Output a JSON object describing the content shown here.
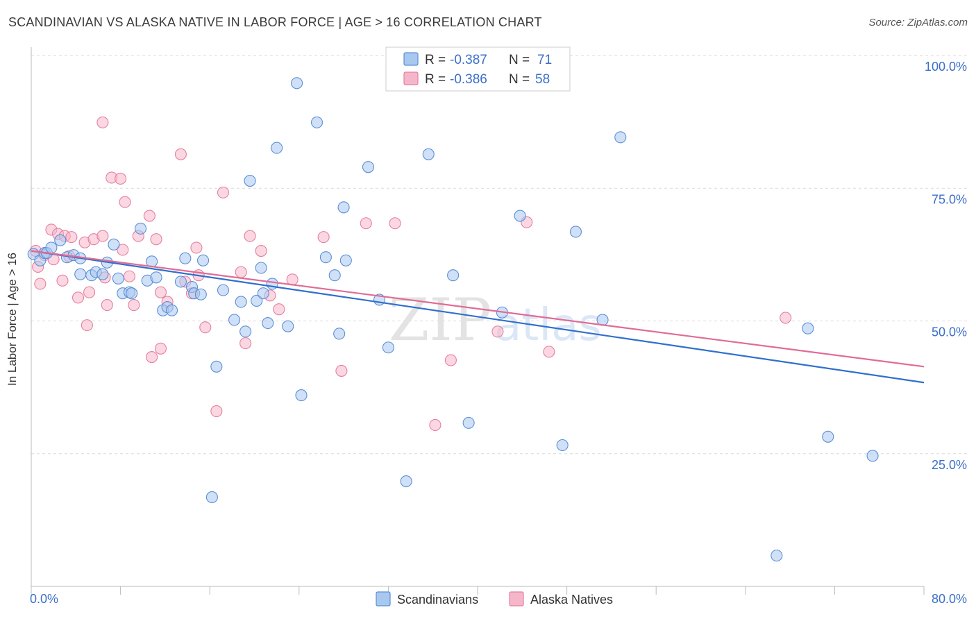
{
  "header": {
    "title": "SCANDINAVIAN VS ALASKA NATIVE IN LABOR FORCE | AGE > 16 CORRELATION CHART",
    "source": "Source: ZipAtlas.com"
  },
  "watermark": {
    "zip": "ZIP",
    "atlas": "atlas"
  },
  "legend_box": {
    "rows": [
      {
        "r_label": "R =",
        "r_value": "-0.387",
        "n_label": "N =",
        "n_value": "71"
      },
      {
        "r_label": "R =",
        "r_value": "-0.386",
        "n_label": "N =",
        "n_value": "58"
      }
    ]
  },
  "bottom_legend": [
    "Scandinavians",
    "Alaska Natives"
  ],
  "colors": {
    "blue_fill": "#a9c8f0",
    "blue_stroke": "#5b8fd6",
    "blue_line": "#2f6fce",
    "pink_fill": "#f5b6c9",
    "pink_stroke": "#e57fa2",
    "pink_line": "#e06c95",
    "value_text": "#3b6fc9",
    "grid": "#d9d9d9"
  },
  "chart_data": {
    "type": "scatter",
    "title": "SCANDINAVIAN VS ALASKA NATIVE IN LABOR FORCE | AGE > 16 CORRELATION CHART",
    "xlabel": "",
    "ylabel": "In Labor Force | Age > 16",
    "xlim": [
      0,
      80
    ],
    "ylim": [
      0,
      100
    ],
    "x_tick_labels": [
      "0.0%",
      "80.0%"
    ],
    "y_tick_labels": [
      "100.0%",
      "75.0%",
      "50.0%",
      "25.0%"
    ],
    "y_ticks": [
      100,
      75,
      50,
      25
    ],
    "grid": true,
    "legend_placement": "bottom-center",
    "series": [
      {
        "name": "Scandinavians",
        "color": "#a9c8f0",
        "r": -0.387,
        "n": 71,
        "trend": {
          "x": [
            0,
            80
          ],
          "y": [
            63.2,
            38.4
          ]
        },
        "points": [
          [
            0.2,
            62.6
          ],
          [
            0.8,
            61.4
          ],
          [
            1.2,
            62.8
          ],
          [
            1.4,
            62.8
          ],
          [
            1.8,
            63.8
          ],
          [
            2.6,
            65.2
          ],
          [
            3.2,
            62.0
          ],
          [
            3.8,
            62.4
          ],
          [
            4.4,
            61.8
          ],
          [
            4.4,
            58.8
          ],
          [
            5.4,
            58.6
          ],
          [
            5.8,
            59.2
          ],
          [
            6.4,
            58.8
          ],
          [
            6.8,
            61.0
          ],
          [
            7.4,
            64.4
          ],
          [
            7.8,
            58.0
          ],
          [
            8.2,
            55.2
          ],
          [
            8.8,
            55.4
          ],
          [
            9.0,
            55.2
          ],
          [
            9.8,
            67.4
          ],
          [
            10.4,
            57.6
          ],
          [
            10.8,
            61.2
          ],
          [
            11.2,
            58.2
          ],
          [
            11.8,
            52.0
          ],
          [
            12.2,
            52.6
          ],
          [
            12.6,
            52.0
          ],
          [
            13.4,
            57.4
          ],
          [
            13.8,
            61.8
          ],
          [
            14.4,
            56.4
          ],
          [
            14.6,
            55.2
          ],
          [
            15.2,
            55.0
          ],
          [
            15.4,
            61.4
          ],
          [
            16.2,
            16.8
          ],
          [
            16.6,
            41.4
          ],
          [
            17.2,
            55.8
          ],
          [
            18.2,
            50.2
          ],
          [
            18.8,
            53.6
          ],
          [
            19.2,
            48.0
          ],
          [
            19.6,
            76.4
          ],
          [
            20.2,
            53.8
          ],
          [
            20.6,
            60.0
          ],
          [
            20.8,
            55.2
          ],
          [
            21.2,
            49.6
          ],
          [
            21.6,
            57.0
          ],
          [
            22.0,
            82.6
          ],
          [
            23.0,
            49.0
          ],
          [
            23.8,
            94.8
          ],
          [
            24.2,
            36.0
          ],
          [
            25.6,
            87.4
          ],
          [
            26.4,
            62.0
          ],
          [
            27.2,
            58.6
          ],
          [
            27.6,
            47.6
          ],
          [
            28.0,
            71.4
          ],
          [
            28.2,
            61.4
          ],
          [
            30.2,
            79.0
          ],
          [
            31.2,
            54.0
          ],
          [
            32.0,
            45.0
          ],
          [
            33.6,
            19.8
          ],
          [
            35.6,
            81.4
          ],
          [
            37.8,
            58.6
          ],
          [
            39.2,
            30.8
          ],
          [
            42.2,
            51.6
          ],
          [
            43.8,
            69.8
          ],
          [
            47.6,
            26.6
          ],
          [
            48.8,
            66.8
          ],
          [
            51.2,
            50.2
          ],
          [
            52.8,
            84.6
          ],
          [
            66.8,
            5.8
          ],
          [
            69.6,
            48.6
          ],
          [
            71.4,
            28.2
          ],
          [
            75.4,
            24.6
          ]
        ]
      },
      {
        "name": "Alaska Natives",
        "color": "#f5b6c9",
        "r": -0.386,
        "n": 58,
        "trend": {
          "x": [
            0,
            80
          ],
          "y": [
            63.2,
            41.4
          ]
        },
        "points": [
          [
            0.4,
            63.2
          ],
          [
            0.6,
            60.2
          ],
          [
            0.8,
            57.0
          ],
          [
            1.2,
            62.4
          ],
          [
            1.8,
            67.2
          ],
          [
            2.0,
            61.6
          ],
          [
            2.4,
            66.4
          ],
          [
            2.8,
            57.6
          ],
          [
            3.0,
            66.0
          ],
          [
            3.4,
            62.2
          ],
          [
            3.6,
            65.8
          ],
          [
            4.2,
            54.4
          ],
          [
            4.8,
            64.8
          ],
          [
            5.0,
            49.2
          ],
          [
            5.2,
            55.4
          ],
          [
            5.6,
            65.4
          ],
          [
            6.4,
            66.0
          ],
          [
            6.4,
            87.4
          ],
          [
            6.6,
            58.2
          ],
          [
            6.8,
            53.0
          ],
          [
            7.2,
            77.0
          ],
          [
            8.0,
            76.8
          ],
          [
            8.2,
            63.4
          ],
          [
            8.4,
            72.4
          ],
          [
            8.8,
            58.4
          ],
          [
            9.2,
            53.0
          ],
          [
            9.6,
            66.0
          ],
          [
            10.6,
            69.8
          ],
          [
            10.8,
            43.2
          ],
          [
            11.2,
            65.4
          ],
          [
            11.6,
            44.8
          ],
          [
            12.2,
            53.6
          ],
          [
            13.4,
            81.4
          ],
          [
            13.8,
            57.4
          ],
          [
            14.4,
            55.2
          ],
          [
            14.8,
            63.8
          ],
          [
            15.0,
            58.6
          ],
          [
            15.6,
            48.8
          ],
          [
            16.6,
            33.0
          ],
          [
            17.2,
            74.2
          ],
          [
            18.8,
            59.2
          ],
          [
            19.2,
            45.8
          ],
          [
            19.6,
            66.0
          ],
          [
            20.6,
            63.2
          ],
          [
            21.4,
            54.8
          ],
          [
            22.2,
            52.2
          ],
          [
            23.4,
            57.8
          ],
          [
            26.2,
            65.8
          ],
          [
            27.8,
            40.6
          ],
          [
            30.0,
            68.4
          ],
          [
            32.6,
            68.4
          ],
          [
            36.2,
            30.4
          ],
          [
            37.6,
            42.6
          ],
          [
            41.8,
            48.0
          ],
          [
            44.4,
            68.6
          ],
          [
            46.4,
            44.2
          ],
          [
            67.6,
            50.6
          ],
          [
            11.6,
            55.4
          ]
        ]
      }
    ]
  }
}
